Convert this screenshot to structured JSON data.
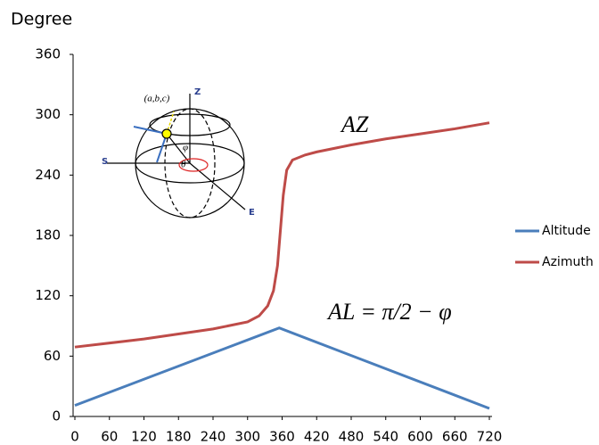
{
  "chart_data": {
    "type": "line",
    "title": "Degree",
    "xlim": [
      0,
      720
    ],
    "xticks": [
      0,
      60,
      120,
      180,
      240,
      300,
      360,
      420,
      480,
      540,
      600,
      660,
      720
    ],
    "ylim": [
      0,
      360
    ],
    "yticks": [
      0,
      60,
      120,
      180,
      240,
      300,
      360
    ],
    "grid": false,
    "legend": "right",
    "series": [
      {
        "name": "Altitude",
        "color": "#4a7ebb",
        "x": [
          0,
          355,
          720
        ],
        "values": [
          11,
          88,
          8
        ]
      },
      {
        "name": "Azimuth",
        "color": "#be4b48",
        "x": [
          0,
          120,
          240,
          300,
          320,
          335,
          345,
          352,
          357,
          362,
          368,
          378,
          400,
          420,
          480,
          540,
          600,
          660,
          720
        ],
        "values": [
          69,
          77,
          87,
          94,
          100,
          110,
          125,
          150,
          185,
          220,
          245,
          255,
          260,
          263,
          270,
          276,
          281,
          286,
          292
        ]
      }
    ],
    "annotations": [
      "AZ",
      "AL = π/2 − φ"
    ],
    "inset_labels": [
      "(a,b,c)",
      "Z",
      "S",
      "E",
      "φ",
      "θ"
    ]
  }
}
